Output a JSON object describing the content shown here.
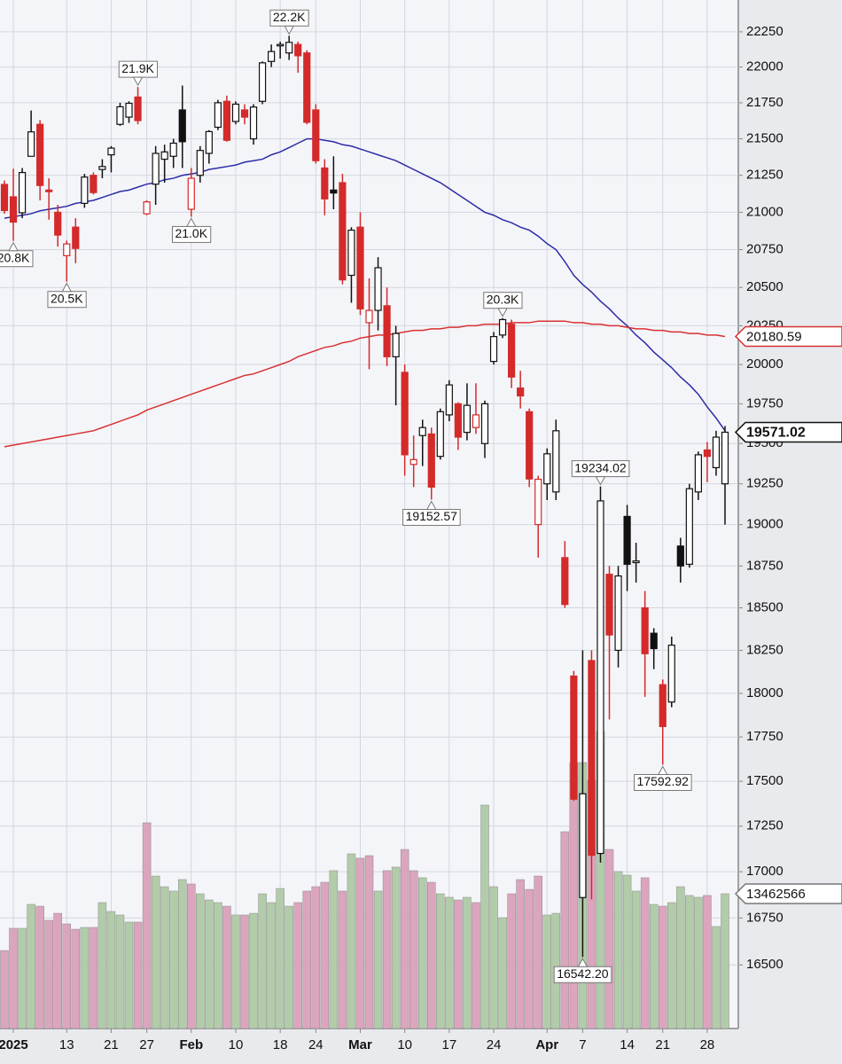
{
  "chart_data": {
    "type": "candlestick",
    "categories": [
      null,
      "2025",
      null,
      null,
      null,
      null,
      null,
      "13",
      null,
      null,
      null,
      null,
      "21",
      null,
      null,
      null,
      "27",
      null,
      null,
      null,
      null,
      "Feb",
      null,
      null,
      null,
      null,
      "10",
      null,
      null,
      null,
      null,
      "18",
      null,
      null,
      null,
      "24",
      null,
      null,
      null,
      null,
      "Mar",
      null,
      null,
      null,
      null,
      "10",
      null,
      null,
      null,
      null,
      "17",
      null,
      null,
      null,
      null,
      "24",
      null,
      null,
      null,
      null,
      null,
      "Apr",
      null,
      null,
      null,
      "7",
      null,
      null,
      null,
      null,
      "14",
      null,
      null,
      null,
      "21",
      null,
      null,
      null,
      null,
      "28",
      null,
      null
    ],
    "open": [
      21188,
      21104,
      20997,
      21380,
      21600,
      21150,
      21000,
      20710,
      20900,
      21060,
      21250,
      21290,
      21390,
      21600,
      21650,
      21790,
      20990,
      21190,
      21360,
      21380,
      21700,
      21020,
      21250,
      21400,
      21580,
      21760,
      21620,
      21700,
      21500,
      21760,
      22040,
      22150,
      22100,
      22160,
      22100,
      21700,
      21300,
      21150,
      21200,
      20580,
      20900,
      20270,
      20350,
      20380,
      20050,
      19950,
      19370,
      19550,
      19560,
      19420,
      19680,
      19750,
      19570,
      19600,
      19500,
      20020,
      20190,
      20260,
      19850,
      19700,
      19000,
      19250,
      19200,
      18800,
      18100,
      16860,
      18190,
      17100,
      18700,
      18250,
      19050,
      18770,
      18500,
      18350,
      18050,
      17950,
      18870,
      18760,
      19200,
      19460,
      19350,
      19250
    ],
    "high": [
      21215,
      21295,
      21300,
      21696,
      21630,
      21230,
      21050,
      20810,
      20960,
      21260,
      21270,
      21360,
      21450,
      21750,
      21760,
      21860,
      21080,
      21450,
      21460,
      21500,
      21870,
      21300,
      21450,
      21560,
      21770,
      21800,
      21760,
      21740,
      21740,
      22040,
      22160,
      22180,
      22222,
      22180,
      22120,
      21740,
      21360,
      21380,
      21260,
      20900,
      21000,
      20560,
      20700,
      20500,
      20250,
      20000,
      19550,
      19650,
      19600,
      19720,
      19900,
      19760,
      19880,
      19880,
      19770,
      20210,
      20300,
      20290,
      19960,
      19720,
      19300,
      19470,
      19650,
      18900,
      18130,
      18250,
      18250,
      19234.02,
      18750,
      18750,
      19120,
      18890,
      18600,
      18380,
      18080,
      18330,
      18920,
      19250,
      19450,
      19510,
      19580,
      19610
    ],
    "low": [
      20990,
      20808,
      20960,
      21380,
      21080,
      20950,
      20770,
      20538,
      20660,
      21030,
      21120,
      21230,
      21270,
      21590,
      21610,
      21600,
      20980,
      21050,
      21200,
      21300,
      21300,
      20970,
      21200,
      21330,
      21560,
      21480,
      21600,
      21600,
      21460,
      21740,
      22000,
      22060,
      22050,
      21960,
      21600,
      21330,
      20980,
      21020,
      20520,
      20400,
      20320,
      19970,
      20220,
      19990,
      19740,
      19300,
      19230,
      19360,
      19152.57,
      19400,
      19640,
      19460,
      19520,
      19560,
      19410,
      20000,
      20170,
      19850,
      19720,
      19230,
      18800,
      19150,
      19150,
      18500,
      17390,
      16542.2,
      16850,
      17050,
      17850,
      18150,
      18600,
      18650,
      17980,
      18140,
      17592.92,
      17920,
      18650,
      18740,
      19150,
      19260,
      19300,
      19000
    ],
    "close": [
      21012,
      20934,
      21269,
      21548,
      21181,
      21139,
      20847,
      20788,
      20758,
      21238,
      21133,
      21310,
      21436,
      21722,
      21746,
      21626,
      21070,
      21400,
      21410,
      21470,
      21480,
      21230,
      21420,
      21550,
      21750,
      21490,
      21740,
      21650,
      21720,
      22030,
      22110,
      22160,
      22175,
      22080,
      21614,
      21350,
      21090,
      21130,
      20550,
      20880,
      20360,
      20350,
      20630,
      20050,
      20200,
      19430,
      19400,
      19600,
      19230,
      19700,
      19870,
      19540,
      19740,
      19680,
      19750,
      20180,
      20290,
      19920,
      19800,
      19280,
      19278,
      19436,
      19580,
      18520,
      17400,
      17430,
      17090,
      19145,
      18340,
      18690,
      18760,
      18780,
      18230,
      18260,
      17810,
      18280,
      18750,
      19220,
      19430,
      19420,
      19540,
      19571.02
    ],
    "high_labels": [
      null,
      null,
      null,
      null,
      null,
      null,
      null,
      null,
      null,
      null,
      null,
      null,
      null,
      null,
      null,
      "21.9K",
      null,
      null,
      null,
      null,
      null,
      null,
      null,
      null,
      null,
      null,
      null,
      null,
      null,
      null,
      null,
      null,
      "22.2K",
      null,
      null,
      null,
      null,
      null,
      null,
      null,
      null,
      null,
      null,
      null,
      null,
      null,
      null,
      null,
      null,
      null,
      null,
      null,
      null,
      null,
      null,
      null,
      "20.3K",
      null,
      null,
      null,
      null,
      null,
      null,
      null,
      null,
      null,
      null,
      "19234.02",
      null,
      null,
      null,
      null,
      null,
      null,
      null,
      null,
      null,
      null,
      null,
      null,
      null,
      null
    ],
    "low_labels": [
      null,
      "20.8K",
      null,
      null,
      null,
      null,
      null,
      "20.5K",
      null,
      null,
      null,
      null,
      null,
      null,
      null,
      null,
      null,
      null,
      null,
      null,
      null,
      "21.0K",
      null,
      null,
      null,
      null,
      null,
      null,
      null,
      null,
      null,
      null,
      null,
      null,
      null,
      null,
      null,
      null,
      null,
      null,
      null,
      null,
      null,
      null,
      null,
      null,
      null,
      null,
      "19152.57",
      null,
      null,
      null,
      null,
      null,
      null,
      null,
      null,
      null,
      null,
      null,
      null,
      null,
      null,
      null,
      null,
      "16542.20",
      null,
      null,
      null,
      null,
      null,
      null,
      null,
      null,
      "17592.92",
      null,
      null,
      null,
      null,
      null,
      null,
      null
    ],
    "volume": [
      7790000,
      10010000,
      10010000,
      12400000,
      12220000,
      10810000,
      11510000,
      10450000,
      9920000,
      10100000,
      10100000,
      12580000,
      11690000,
      11340000,
      10630000,
      10630000,
      20550000,
      15230000,
      14170000,
      13730000,
      14880000,
      14440000,
      13460000,
      12840000,
      12580000,
      12220000,
      11340000,
      11340000,
      11510000,
      13460000,
      12580000,
      13990000,
      12220000,
      12580000,
      13730000,
      14170000,
      14610000,
      15770000,
      13730000,
      17450000,
      17010000,
      17270000,
      13730000,
      15770000,
      16120000,
      17890000,
      15770000,
      15060000,
      14610000,
      13460000,
      13110000,
      12840000,
      13110000,
      12580000,
      22320000,
      14170000,
      11070000,
      13460000,
      14880000,
      13900000,
      15230000,
      11340000,
      11510000,
      19660000,
      26570000,
      26570000,
      24800000,
      29670000,
      17890000,
      15680000,
      15320000,
      13730000,
      15060000,
      12400000,
      12220000,
      12580000,
      14170000,
      13290000,
      13110000,
      13290000,
      10190000,
      13462566
    ],
    "moving_averages": [
      {
        "color": "#2c2ca6",
        "values": [
          20960,
          20970,
          20980,
          20990,
          21010,
          21020,
          21030,
          21040,
          21060,
          21070,
          21080,
          21100,
          21120,
          21140,
          21150,
          21170,
          21190,
          21200,
          21220,
          21230,
          21250,
          21260,
          21270,
          21290,
          21300,
          21310,
          21320,
          21340,
          21350,
          21360,
          21390,
          21410,
          21440,
          21470,
          21500,
          21500,
          21490,
          21480,
          21460,
          21450,
          21430,
          21410,
          21390,
          21370,
          21350,
          21320,
          21290,
          21260,
          21230,
          21200,
          21160,
          21120,
          21080,
          21040,
          21000,
          20980,
          20950,
          20930,
          20900,
          20880,
          20840,
          20790,
          20750,
          20670,
          20580,
          20520,
          20470,
          20410,
          20360,
          20300,
          20250,
          20190,
          20140,
          20080,
          20030,
          19980,
          19920,
          19870,
          19810,
          19730,
          19660,
          19580
        ]
      },
      {
        "color": "#d83232",
        "values": [
          19480,
          19490,
          19500,
          19510,
          19520,
          19530,
          19540,
          19550,
          19560,
          19570,
          19580,
          19600,
          19620,
          19640,
          19660,
          19680,
          19710,
          19730,
          19750,
          19770,
          19790,
          19810,
          19830,
          19850,
          19870,
          19890,
          19910,
          19930,
          19940,
          19960,
          19980,
          20000,
          20020,
          20050,
          20070,
          20090,
          20110,
          20120,
          20140,
          20150,
          20170,
          20180,
          20190,
          20190,
          20200,
          20210,
          20220,
          20220,
          20230,
          20230,
          20240,
          20240,
          20250,
          20250,
          20260,
          20260,
          20260,
          20270,
          20270,
          20270,
          20280,
          20280,
          20280,
          20280,
          20270,
          20270,
          20260,
          20260,
          20250,
          20250,
          20240,
          20230,
          20230,
          20220,
          20220,
          20210,
          20210,
          20200,
          20200,
          20190,
          20190,
          20180.59
        ]
      }
    ],
    "colors": {
      "up": "#111111",
      "down": "#d42a2a",
      "volume_up": "#b2ccaa",
      "volume_down": "#dba5bd"
    },
    "ylim": [
      16167,
      22478
    ],
    "yticks": [
      16500,
      16750,
      17000,
      17250,
      17500,
      17750,
      18000,
      18250,
      18500,
      18750,
      19000,
      19250,
      19500,
      19750,
      20000,
      20250,
      20500,
      20750,
      21000,
      21250,
      21500,
      21750,
      22000,
      22250
    ],
    "log_scale": true,
    "grid": true
  }
}
